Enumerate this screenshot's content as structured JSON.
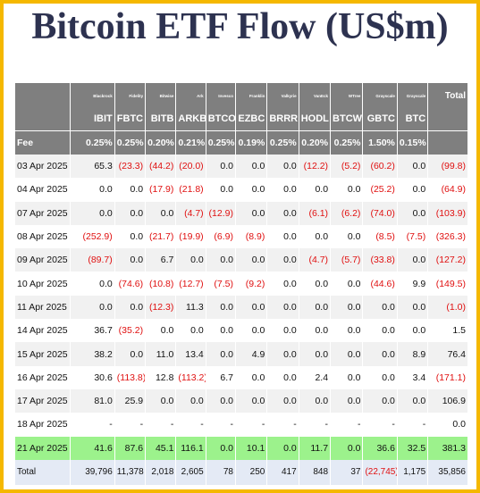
{
  "title": "Bitcoin ETF Flow (US$m)",
  "issuers": [
    "Blackrock",
    "Fidelity",
    "Bitwise",
    "Ark",
    "Invesco",
    "Franklin",
    "Valkyrie",
    "VanEck",
    "WTree",
    "Grayscale",
    "Grayscale"
  ],
  "total_header": "Total",
  "tickers": [
    "IBIT",
    "FBTC",
    "BITB",
    "ARKB",
    "BTCO",
    "EZBC",
    "BRRR",
    "HODL",
    "BTCW",
    "GBTC",
    "BTC"
  ],
  "fee_label": "Fee",
  "fees": [
    "0.25%",
    "0.25%",
    "0.20%",
    "0.21%",
    "0.25%",
    "0.19%",
    "0.25%",
    "0.20%",
    "0.25%",
    "1.50%",
    "0.15%"
  ],
  "rows": [
    {
      "date": "03 Apr 2025",
      "values": [
        "65.3",
        "(23.3)",
        "(44.2)",
        "(20.0)",
        "0.0",
        "0.0",
        "0.0",
        "(12.2)",
        "(5.2)",
        "(60.2)",
        "0.0"
      ],
      "total": "(99.8)"
    },
    {
      "date": "04 Apr 2025",
      "values": [
        "0.0",
        "0.0",
        "(17.9)",
        "(21.8)",
        "0.0",
        "0.0",
        "0.0",
        "0.0",
        "0.0",
        "(25.2)",
        "0.0"
      ],
      "total": "(64.9)"
    },
    {
      "date": "07 Apr 2025",
      "values": [
        "0.0",
        "0.0",
        "0.0",
        "(4.7)",
        "(12.9)",
        "0.0",
        "0.0",
        "(6.1)",
        "(6.2)",
        "(74.0)",
        "0.0"
      ],
      "total": "(103.9)"
    },
    {
      "date": "08 Apr 2025",
      "values": [
        "(252.9)",
        "0.0",
        "(21.7)",
        "(19.9)",
        "(6.9)",
        "(8.9)",
        "0.0",
        "0.0",
        "0.0",
        "(8.5)",
        "(7.5)"
      ],
      "total": "(326.3)"
    },
    {
      "date": "09 Apr 2025",
      "values": [
        "(89.7)",
        "0.0",
        "6.7",
        "0.0",
        "0.0",
        "0.0",
        "0.0",
        "(4.7)",
        "(5.7)",
        "(33.8)",
        "0.0"
      ],
      "total": "(127.2)"
    },
    {
      "date": "10 Apr 2025",
      "values": [
        "0.0",
        "(74.6)",
        "(10.8)",
        "(12.7)",
        "(7.5)",
        "(9.2)",
        "0.0",
        "0.0",
        "0.0",
        "(44.6)",
        "9.9"
      ],
      "total": "(149.5)"
    },
    {
      "date": "11 Apr 2025",
      "values": [
        "0.0",
        "0.0",
        "(12.3)",
        "11.3",
        "0.0",
        "0.0",
        "0.0",
        "0.0",
        "0.0",
        "0.0",
        "0.0"
      ],
      "total": "(1.0)"
    },
    {
      "date": "14 Apr 2025",
      "values": [
        "36.7",
        "(35.2)",
        "0.0",
        "0.0",
        "0.0",
        "0.0",
        "0.0",
        "0.0",
        "0.0",
        "0.0",
        "0.0"
      ],
      "total": "1.5"
    },
    {
      "date": "15 Apr 2025",
      "values": [
        "38.2",
        "0.0",
        "11.0",
        "13.4",
        "0.0",
        "4.9",
        "0.0",
        "0.0",
        "0.0",
        "0.0",
        "8.9"
      ],
      "total": "76.4"
    },
    {
      "date": "16 Apr 2025",
      "values": [
        "30.6",
        "(113.8)",
        "12.8",
        "(113.2)",
        "6.7",
        "0.0",
        "0.0",
        "2.4",
        "0.0",
        "0.0",
        "3.4"
      ],
      "total": "(171.1)"
    },
    {
      "date": "17 Apr 2025",
      "values": [
        "81.0",
        "25.9",
        "0.0",
        "0.0",
        "0.0",
        "0.0",
        "0.0",
        "0.0",
        "0.0",
        "0.0",
        "0.0"
      ],
      "total": "106.9"
    },
    {
      "date": "18 Apr 2025",
      "values": [
        "-",
        "-",
        "-",
        "-",
        "-",
        "-",
        "-",
        "-",
        "-",
        "-",
        "-"
      ],
      "total": "0.0"
    },
    {
      "date": "21 Apr 2025",
      "values": [
        "41.6",
        "87.6",
        "45.1",
        "116.1",
        "0.0",
        "10.1",
        "0.0",
        "11.7",
        "0.0",
        "36.6",
        "32.5"
      ],
      "total": "381.3",
      "highlight": true
    }
  ],
  "totals_row": {
    "label": "Total",
    "values": [
      "39,796",
      "11,378",
      "2,018",
      "2,605",
      "78",
      "250",
      "417",
      "848",
      "37",
      "(22,745)",
      "1,175"
    ],
    "total": "35,856"
  },
  "colors": {
    "border": "#f5b800",
    "header_bg": "#7f7f7f",
    "negative": "#e01010",
    "highlight_row": "#9cf28c",
    "total_row": "#e4eaf5",
    "title": "#2d3250"
  }
}
